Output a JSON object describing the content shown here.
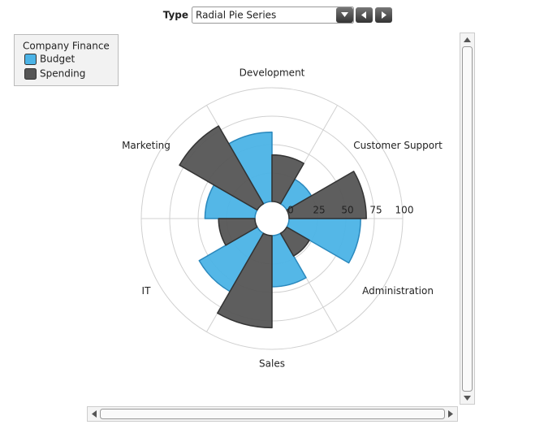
{
  "controls": {
    "type_label": "Type",
    "selected": "Radial Pie Series"
  },
  "chart_data": {
    "type": "radial-pie",
    "legend_title": "Company Finance",
    "categories": [
      "Development",
      "Customer Support",
      "Administration",
      "Sales",
      "IT",
      "Marketing"
    ],
    "series": [
      {
        "name": "Budget",
        "color": "#4bb3e6",
        "values": [
          61,
          25,
          63,
          45,
          59,
          44
        ]
      },
      {
        "name": "Spending",
        "color": "#555555",
        "values": [
          41,
          68,
          23,
          81,
          32,
          79
        ]
      }
    ],
    "ylim": [
      0,
      100
    ],
    "yticks": [
      0,
      25,
      50,
      75,
      100
    ],
    "grid": true
  }
}
